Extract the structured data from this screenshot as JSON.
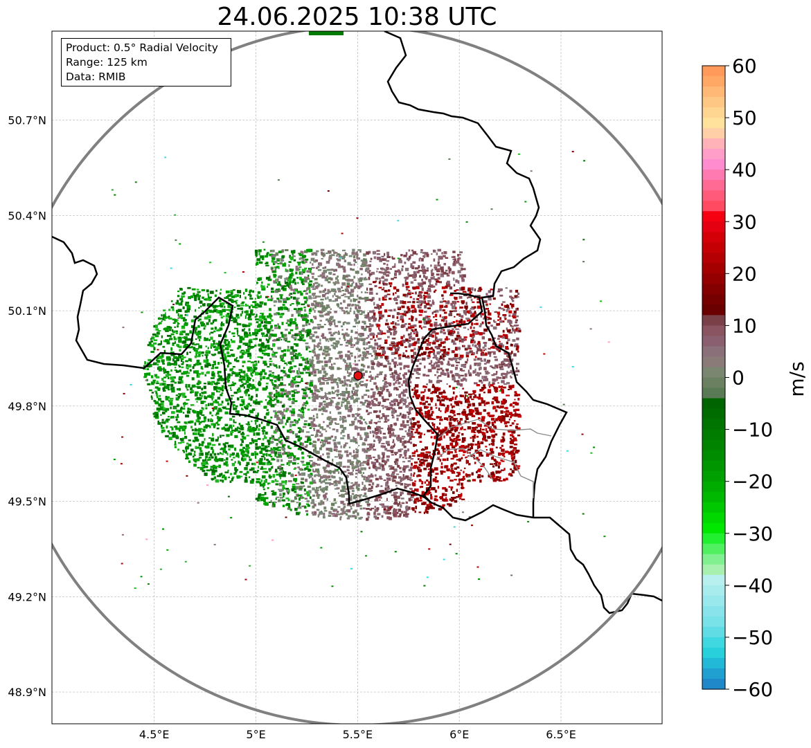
{
  "title": "24.06.2025 10:38 UTC",
  "info_box": {
    "product": "Product: 0.5° Radial Velocity",
    "range": "Range: 125 km",
    "data": "Data: RMIB"
  },
  "lat_ticks": [
    {
      "value": 50.7,
      "label": "50.7°N"
    },
    {
      "value": 50.4,
      "label": "50.4°N"
    },
    {
      "value": 50.1,
      "label": "50.1°N"
    },
    {
      "value": 49.8,
      "label": "49.8°N"
    },
    {
      "value": 49.5,
      "label": "49.5°N"
    },
    {
      "value": 49.2,
      "label": "49.2°N"
    },
    {
      "value": 48.9,
      "label": "48.9°N"
    }
  ],
  "lon_ticks": [
    {
      "value": 4.5,
      "label": "4.5°E"
    },
    {
      "value": 5.0,
      "label": "5°E"
    },
    {
      "value": 5.5,
      "label": "5.5°E"
    },
    {
      "value": 6.0,
      "label": "6°E"
    },
    {
      "value": 6.5,
      "label": "6.5°E"
    }
  ],
  "colorbar": {
    "unit": "m/s",
    "min": -60,
    "max": 60,
    "tick_labels": [
      "60",
      "50",
      "40",
      "30",
      "20",
      "10",
      "0",
      "−10",
      "−20",
      "−30",
      "−40",
      "−50",
      "−60"
    ],
    "colors": [
      "#ff9a5a",
      "#ffa866",
      "#ffb876",
      "#ffc784",
      "#ffd592",
      "#ffe29c",
      "#ffd0a8",
      "#ffb2b8",
      "#ff9ec8",
      "#ff8ccf",
      "#ff7ab0",
      "#ff6a95",
      "#ff5a7a",
      "#ff4a62",
      "#f40010",
      "#e40010",
      "#d40008",
      "#c40004",
      "#b40002",
      "#a40000",
      "#940000",
      "#840000",
      "#760000",
      "#6a0000",
      "#7a4048",
      "#8a5560",
      "#8a6070",
      "#8a7078",
      "#8a7a78",
      "#7a8670",
      "#6a8060",
      "#5a7a55",
      "#006400",
      "#006c00",
      "#007400",
      "#007c00",
      "#008400",
      "#008c00",
      "#009600",
      "#00a000",
      "#00ac00",
      "#00b800",
      "#00c800",
      "#00d800",
      "#00e800",
      "#20f030",
      "#50f060",
      "#80f090",
      "#a8f0b0",
      "#b8f0f0",
      "#a8ecee",
      "#98e8ec",
      "#88e4ea",
      "#78e2e8",
      "#60dde4",
      "#40d8e0",
      "#28d0dc",
      "#22b8d8",
      "#20a0d0",
      "#1f88c8"
    ]
  },
  "radar": {
    "center_lat": 49.914,
    "center_lon": 5.505,
    "range_km": 125,
    "ring_color": "#808080",
    "site_marker_color": "#e01010",
    "approaching_color": "#008c00",
    "receding_color": "#a00000",
    "near_zero_color": "#7a8a7a"
  },
  "map_extent": {
    "lon_min": 3.997,
    "lon_max": 6.997,
    "lat_min": 48.8,
    "lat_max": 50.98
  },
  "boundary_color": "#000000",
  "internal_boundary_color": "#8a8a8a"
}
